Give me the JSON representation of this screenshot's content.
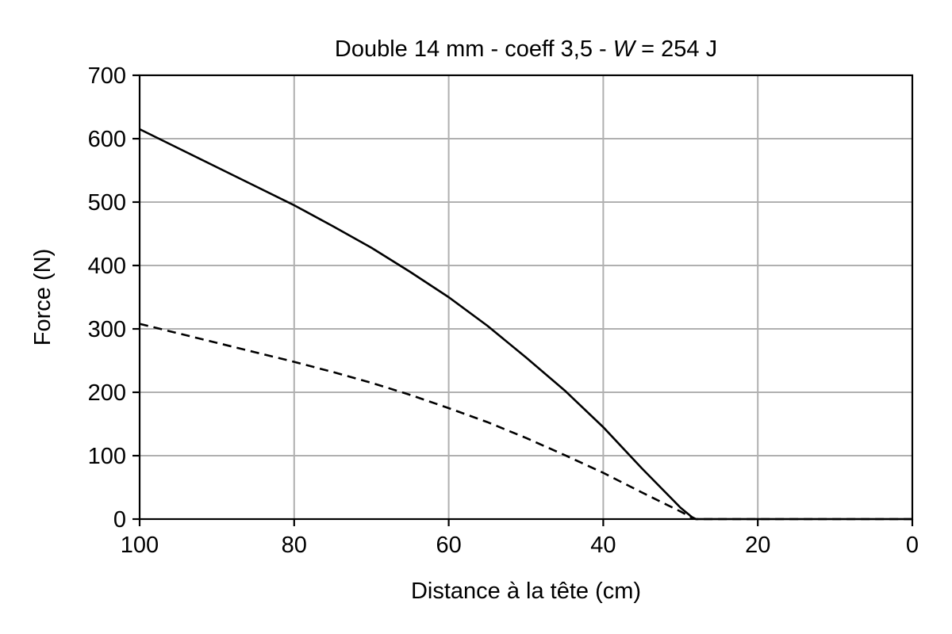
{
  "chart_data": {
    "type": "line",
    "title": {
      "prefix": "Double 14 mm - coeff 3,5 - ",
      "var": "W",
      "suffix": " = 254 J"
    },
    "xlabel": "Distance à la tête (cm)",
    "ylabel": "Force (N)",
    "xlim": [
      100,
      0
    ],
    "ylim": [
      0,
      700
    ],
    "xticks": [
      100,
      80,
      60,
      40,
      20,
      0
    ],
    "yticks": [
      0,
      100,
      200,
      300,
      400,
      500,
      600,
      700
    ],
    "grid": true,
    "series": [
      {
        "style": "solid",
        "x": [
          100,
          95,
          90,
          85,
          80,
          75,
          70,
          65,
          60,
          55,
          50,
          45,
          40,
          35,
          30,
          28.5,
          28,
          20,
          10,
          0
        ],
        "y": [
          615,
          585,
          555,
          525,
          495,
          462,
          428,
          390,
          350,
          305,
          255,
          203,
          145,
          80,
          18,
          3,
          0,
          0,
          0,
          0
        ]
      },
      {
        "style": "dashed",
        "x": [
          100,
          95,
          90,
          85,
          80,
          75,
          70,
          65,
          60,
          55,
          50,
          45,
          40,
          35,
          30,
          28.5,
          28,
          20,
          10,
          0
        ],
        "y": [
          308,
          293,
          278,
          263,
          248,
          232,
          215,
          196,
          175,
          153,
          128,
          101,
          73,
          42,
          12,
          2,
          0,
          0,
          0,
          0
        ]
      }
    ]
  }
}
